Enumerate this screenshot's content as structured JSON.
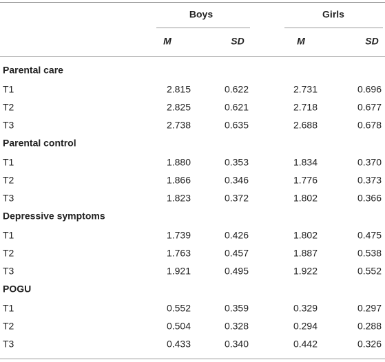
{
  "table": {
    "header": {
      "groups": [
        "Boys",
        "Girls"
      ],
      "stats": [
        "M",
        "SD",
        "M",
        "SD"
      ]
    },
    "sections": [
      {
        "label": "Parental care",
        "rows": [
          {
            "label": "T1",
            "values": [
              "2.815",
              "0.622",
              "2.731",
              "0.696"
            ]
          },
          {
            "label": "T2",
            "values": [
              "2.825",
              "0.621",
              "2.718",
              "0.677"
            ]
          },
          {
            "label": "T3",
            "values": [
              "2.738",
              "0.635",
              "2.688",
              "0.678"
            ]
          }
        ]
      },
      {
        "label": "Parental control",
        "rows": [
          {
            "label": "T1",
            "values": [
              "1.880",
              "0.353",
              "1.834",
              "0.370"
            ]
          },
          {
            "label": "T2",
            "values": [
              "1.866",
              "0.346",
              "1.776",
              "0.373"
            ]
          },
          {
            "label": "T3",
            "values": [
              "1.823",
              "0.372",
              "1.802",
              "0.366"
            ]
          }
        ]
      },
      {
        "label": "Depressive symptoms",
        "rows": [
          {
            "label": "T1",
            "values": [
              "1.739",
              "0.426",
              "1.802",
              "0.475"
            ]
          },
          {
            "label": "T2",
            "values": [
              "1.763",
              "0.457",
              "1.887",
              "0.538"
            ]
          },
          {
            "label": "T3",
            "values": [
              "1.921",
              "0.495",
              "1.922",
              "0.552"
            ]
          }
        ]
      },
      {
        "label": "POGU",
        "rows": [
          {
            "label": "T1",
            "values": [
              "0.552",
              "0.359",
              "0.329",
              "0.297"
            ]
          },
          {
            "label": "T2",
            "values": [
              "0.504",
              "0.328",
              "0.294",
              "0.288"
            ]
          },
          {
            "label": "T3",
            "values": [
              "0.433",
              "0.340",
              "0.442",
              "0.326"
            ]
          }
        ]
      }
    ]
  }
}
